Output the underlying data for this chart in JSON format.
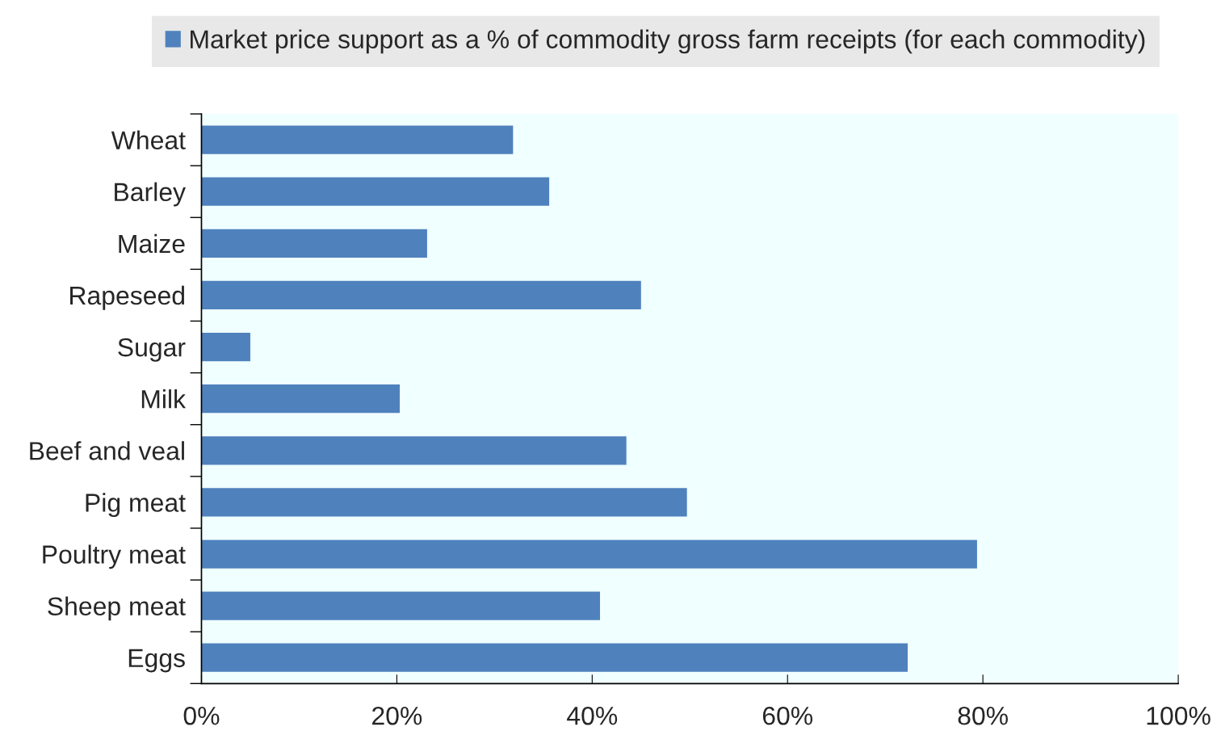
{
  "chart_data": {
    "type": "bar",
    "orientation": "horizontal",
    "categories": [
      "Wheat",
      "Barley",
      "Maize",
      "Rapeseed",
      "Sugar",
      "Milk",
      "Beef and veal",
      "Pig meat",
      "Poultry meat",
      "Sheep meat",
      "Eggs"
    ],
    "series": [
      {
        "name": "Market price support as a % of commodity gross farm receipts (for each commodity)",
        "color": "#4f81bd",
        "values": [
          31.9,
          35.6,
          23.1,
          45.0,
          5.0,
          20.3,
          43.5,
          49.7,
          79.4,
          40.8,
          72.3
        ]
      }
    ],
    "xlim": [
      0,
      100
    ],
    "xticks": [
      {
        "value": 0,
        "label": "0%"
      },
      {
        "value": 20,
        "label": "20%"
      },
      {
        "value": 40,
        "label": "40%"
      },
      {
        "value": 60,
        "label": "60%"
      },
      {
        "value": 80,
        "label": "80%"
      },
      {
        "value": 100,
        "label": "100%"
      }
    ],
    "legend": "top"
  }
}
